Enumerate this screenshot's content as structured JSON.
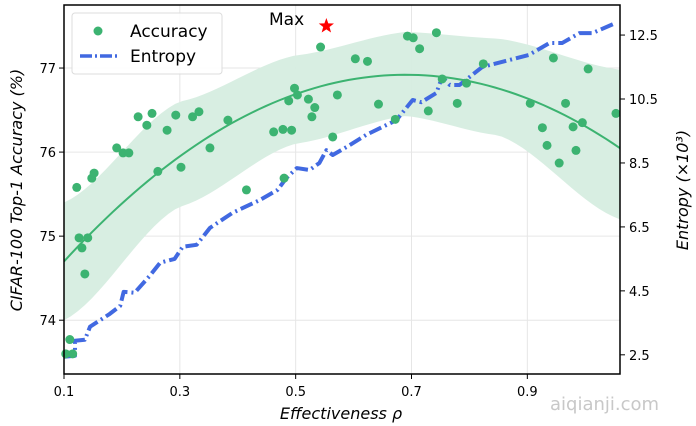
{
  "chart_data": {
    "type": "scatter",
    "title": "",
    "xlabel": "Effectiveness ρ",
    "ylabel": "CIFAR-100 Top-1 Accuracy (%)",
    "y2label": "Entropy (×10³)",
    "xlim": [
      0.1,
      1.06
    ],
    "ylim": [
      73.36,
      77.75
    ],
    "y2lim": [
      1.9,
      13.44
    ],
    "xticks": [
      0.1,
      0.3,
      0.5,
      0.7,
      0.9
    ],
    "xtick_labels": [
      "0.1",
      "0.3",
      "0.5",
      "0.7",
      "0.9"
    ],
    "yticks": [
      74,
      75,
      76,
      77
    ],
    "ytick_labels": [
      "74",
      "75",
      "76",
      "77"
    ],
    "y2ticks": [
      2.5,
      4.5,
      6.5,
      8.5,
      10.5,
      12.5
    ],
    "y2tick_labels": [
      "2.5",
      "4.5",
      "6.5",
      "8.5",
      "10.5",
      "12.5"
    ],
    "grid": true,
    "legend": {
      "placement": "top-left",
      "entries": [
        {
          "label": "Accuracy",
          "marker": "circle",
          "color": "#3cb371"
        },
        {
          "label": "Entropy",
          "style": "dash-dot",
          "color": "#4169e1"
        }
      ]
    },
    "series": [
      {
        "name": "Accuracy",
        "type": "scatter",
        "axis": "left",
        "color": "#3cb371",
        "points": [
          [
            0.103,
            73.6
          ],
          [
            0.115,
            73.6
          ],
          [
            0.11,
            73.77
          ],
          [
            0.122,
            75.58
          ],
          [
            0.126,
            74.98
          ],
          [
            0.131,
            74.86
          ],
          [
            0.136,
            74.55
          ],
          [
            0.141,
            74.98
          ],
          [
            0.148,
            75.69
          ],
          [
            0.152,
            75.75
          ],
          [
            0.191,
            76.05
          ],
          [
            0.202,
            75.99
          ],
          [
            0.212,
            75.99
          ],
          [
            0.228,
            76.42
          ],
          [
            0.243,
            76.32
          ],
          [
            0.252,
            76.46
          ],
          [
            0.262,
            75.77
          ],
          [
            0.278,
            76.26
          ],
          [
            0.293,
            76.44
          ],
          [
            0.302,
            75.82
          ],
          [
            0.322,
            76.42
          ],
          [
            0.333,
            76.48
          ],
          [
            0.352,
            76.05
          ],
          [
            0.383,
            76.38
          ],
          [
            0.415,
            75.55
          ],
          [
            0.462,
            76.24
          ],
          [
            0.478,
            76.27
          ],
          [
            0.48,
            75.69
          ],
          [
            0.488,
            76.61
          ],
          [
            0.493,
            76.26
          ],
          [
            0.498,
            76.76
          ],
          [
            0.503,
            76.68
          ],
          [
            0.522,
            76.63
          ],
          [
            0.528,
            76.42
          ],
          [
            0.533,
            76.53
          ],
          [
            0.543,
            77.25
          ],
          [
            0.564,
            76.18
          ],
          [
            0.572,
            76.68
          ],
          [
            0.603,
            77.11
          ],
          [
            0.624,
            77.08
          ],
          [
            0.643,
            76.57
          ],
          [
            0.672,
            76.39
          ],
          [
            0.693,
            77.38
          ],
          [
            0.703,
            77.36
          ],
          [
            0.714,
            77.23
          ],
          [
            0.729,
            76.49
          ],
          [
            0.743,
            77.42
          ],
          [
            0.753,
            76.87
          ],
          [
            0.779,
            76.58
          ],
          [
            0.795,
            76.82
          ],
          [
            0.824,
            77.05
          ],
          [
            0.905,
            76.58
          ],
          [
            0.926,
            76.29
          ],
          [
            0.934,
            76.08
          ],
          [
            0.945,
            77.12
          ],
          [
            0.955,
            75.87
          ],
          [
            0.966,
            76.58
          ],
          [
            0.979,
            76.3
          ],
          [
            0.984,
            76.02
          ],
          [
            0.995,
            76.35
          ],
          [
            1.005,
            76.99
          ],
          [
            1.053,
            76.46
          ]
        ]
      },
      {
        "name": "Accuracy fit",
        "type": "line",
        "axis": "left",
        "color": "#3cb371",
        "model": "quadratic",
        "peak": [
          0.69,
          76.92
        ],
        "curvature": -6.38
      },
      {
        "name": "Accuracy fit band",
        "type": "area",
        "axis": "left",
        "color": "#d6ede0",
        "x": [
          0.1,
          0.3,
          0.5,
          0.69,
          0.85,
          1.06
        ],
        "lower": [
          74.0,
          75.35,
          76.1,
          76.43,
          76.2,
          75.2
        ],
        "upper": [
          75.4,
          76.6,
          77.15,
          77.43,
          77.35,
          76.98
        ]
      },
      {
        "name": "Entropy",
        "type": "line",
        "axis": "right",
        "style": "dash-dot",
        "color": "#4169e1",
        "points": [
          [
            0.1,
            2.44
          ],
          [
            0.119,
            2.47
          ],
          [
            0.119,
            2.94
          ],
          [
            0.136,
            2.97
          ],
          [
            0.145,
            3.38
          ],
          [
            0.179,
            3.78
          ],
          [
            0.197,
            4.03
          ],
          [
            0.203,
            4.47
          ],
          [
            0.222,
            4.44
          ],
          [
            0.248,
            4.97
          ],
          [
            0.266,
            5.38
          ],
          [
            0.291,
            5.5
          ],
          [
            0.305,
            5.88
          ],
          [
            0.329,
            5.94
          ],
          [
            0.352,
            6.47
          ],
          [
            0.391,
            6.94
          ],
          [
            0.438,
            7.34
          ],
          [
            0.469,
            7.66
          ],
          [
            0.484,
            8.03
          ],
          [
            0.502,
            8.34
          ],
          [
            0.524,
            8.28
          ],
          [
            0.541,
            8.5
          ],
          [
            0.553,
            8.9
          ],
          [
            0.564,
            8.75
          ],
          [
            0.588,
            9.0
          ],
          [
            0.622,
            9.38
          ],
          [
            0.674,
            9.84
          ],
          [
            0.702,
            10.47
          ],
          [
            0.717,
            10.4
          ],
          [
            0.743,
            10.69
          ],
          [
            0.753,
            11.19
          ],
          [
            0.766,
            10.94
          ],
          [
            0.783,
            10.94
          ],
          [
            0.822,
            11.5
          ],
          [
            0.903,
            11.88
          ],
          [
            0.938,
            12.25
          ],
          [
            0.96,
            12.25
          ],
          [
            0.99,
            12.56
          ],
          [
            1.012,
            12.56
          ],
          [
            1.053,
            12.88
          ]
        ]
      }
    ],
    "annotations": [
      {
        "text": "Max",
        "marker": "star",
        "color": "#ff0000",
        "x": 0.553,
        "y": 77.5
      }
    ]
  },
  "watermark": "aiqianji.com"
}
